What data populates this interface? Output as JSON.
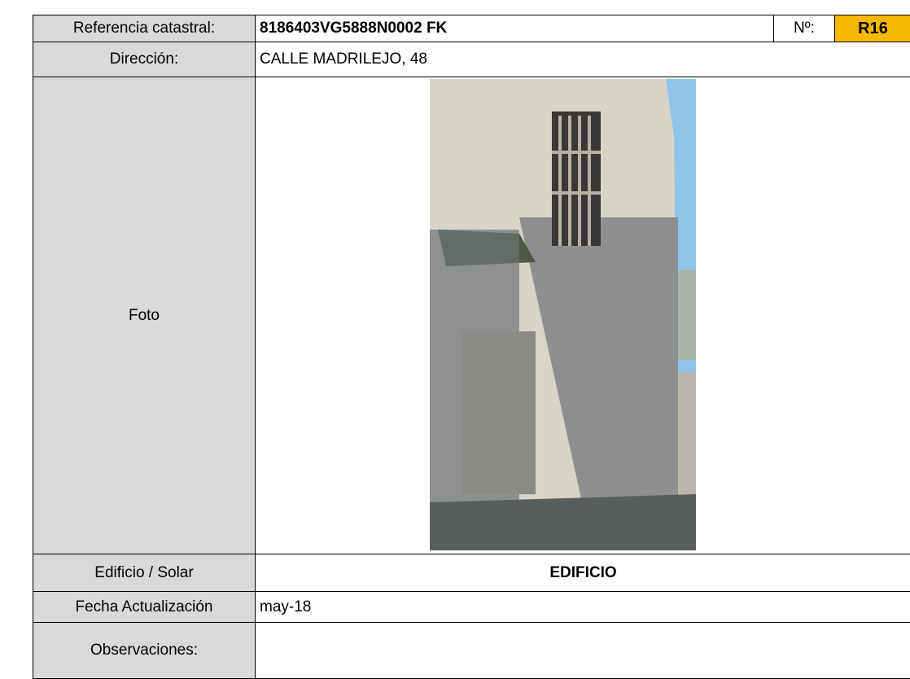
{
  "header": {
    "label": "Referencia catastral:",
    "value": "8186403VG5888N0002 FK",
    "number_label": "Nº:",
    "number": "R16"
  },
  "rows": [
    {
      "label": "Dirección:",
      "value": "CALLE MADRILEJO, 48"
    },
    {
      "label": "Foto"
    },
    {
      "label": "Edificio / Solar",
      "value": "EDIFICIO"
    },
    {
      "label": "Fecha Actualización",
      "value": "may-18"
    },
    {
      "label": "Observaciones:"
    }
  ]
}
